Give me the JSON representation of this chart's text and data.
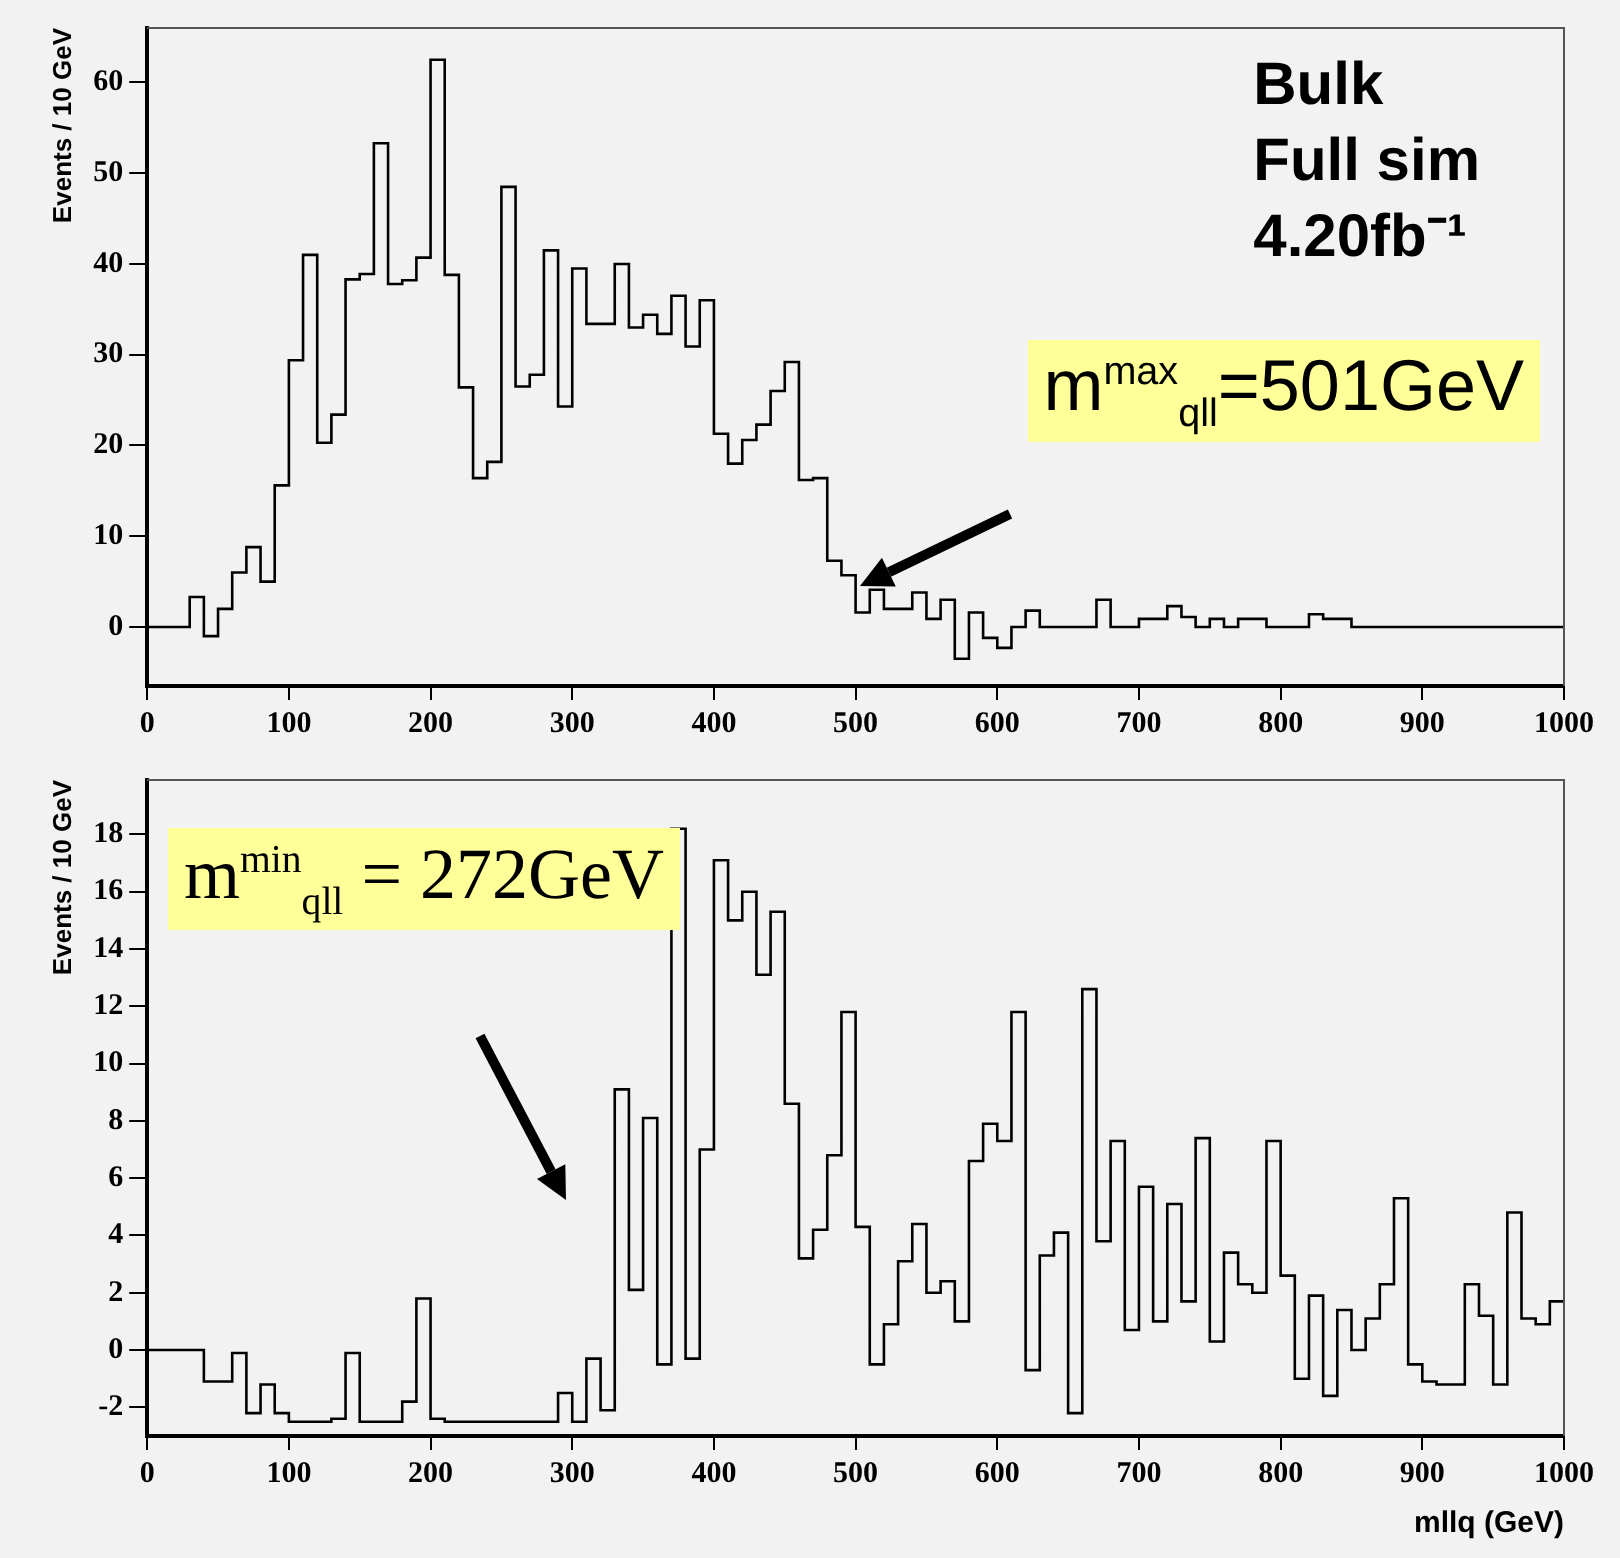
{
  "chart_data": [
    {
      "type": "histogram",
      "ylabel": "Events / 10 GeV",
      "color": "#000000",
      "bins": [
        0,
        10,
        20,
        30,
        40,
        50,
        60,
        70,
        80,
        90,
        100,
        110,
        120,
        130,
        140,
        150,
        160,
        170,
        180,
        190,
        200,
        210,
        220,
        230,
        240,
        250,
        260,
        270,
        280,
        290,
        300,
        310,
        320,
        330,
        340,
        350,
        360,
        370,
        380,
        390,
        400,
        410,
        420,
        430,
        440,
        450,
        460,
        470,
        480,
        490,
        500,
        510,
        520,
        530,
        540,
        550,
        560,
        570,
        580,
        590,
        600,
        610,
        620,
        630,
        640,
        650,
        660,
        670,
        680,
        690,
        700,
        710,
        720,
        730,
        740,
        750,
        760,
        770,
        780,
        790,
        800,
        810,
        820,
        830,
        840,
        850,
        860,
        870,
        880,
        890,
        900,
        910,
        920,
        930,
        940,
        950,
        960,
        970,
        980,
        990,
        1000
      ],
      "values": [
        0,
        0,
        0,
        3.3,
        -1,
        2,
        6,
        8.8,
        5,
        15.6,
        29.4,
        41,
        20.3,
        23.4,
        38.3,
        38.9,
        53.3,
        37.8,
        38.2,
        40.7,
        62.5,
        38.8,
        26.4,
        16.4,
        18.2,
        48.5,
        26.5,
        27.8,
        41.5,
        24.3,
        39.5,
        33.4,
        33.4,
        40,
        33,
        34.4,
        32.3,
        36.5,
        30.9,
        36,
        21.3,
        18,
        20.6,
        22.3,
        26,
        29.2,
        16.2,
        16.4,
        7.3,
        5.7,
        1.6,
        4.1,
        2,
        2,
        3.8,
        0.9,
        3,
        -3.5,
        1.6,
        -1.2,
        -2.3,
        0,
        1.8,
        0,
        0,
        0,
        0,
        3,
        0,
        0,
        0.9,
        0.9,
        2.3,
        1.1,
        0,
        0.9,
        0,
        0.9,
        0.9,
        0,
        0,
        0,
        1.4,
        0.9,
        0.9,
        0,
        0,
        0,
        0,
        0,
        0,
        0,
        0,
        0,
        0,
        0,
        0,
        0,
        0,
        0
      ],
      "xlim": [
        0,
        1000
      ],
      "xticks": [
        0,
        100,
        200,
        300,
        400,
        500,
        600,
        700,
        800,
        900,
        1000
      ],
      "ylim": [
        -6.5,
        66
      ],
      "yticks": [
        0,
        10,
        20,
        30,
        40,
        50,
        60
      ],
      "annotations": [
        "Bulk",
        "Full sim",
        "4.20fb⁻¹",
        "m$^{max}$$_{qll}$=501GeV"
      ]
    },
    {
      "type": "histogram",
      "ylabel": "Events / 10 GeV",
      "xlabel": "mllq (GeV)",
      "color": "#000000",
      "bins": [
        0,
        10,
        20,
        30,
        40,
        50,
        60,
        70,
        80,
        90,
        100,
        110,
        120,
        130,
        140,
        150,
        160,
        170,
        180,
        190,
        200,
        210,
        220,
        230,
        240,
        250,
        260,
        270,
        280,
        290,
        300,
        310,
        320,
        330,
        340,
        350,
        360,
        370,
        380,
        390,
        400,
        410,
        420,
        430,
        440,
        450,
        460,
        470,
        480,
        490,
        500,
        510,
        520,
        530,
        540,
        550,
        560,
        570,
        580,
        590,
        600,
        610,
        620,
        630,
        640,
        650,
        660,
        670,
        680,
        690,
        700,
        710,
        720,
        730,
        740,
        750,
        760,
        770,
        780,
        790,
        800,
        810,
        820,
        830,
        840,
        850,
        860,
        870,
        880,
        890,
        900,
        910,
        920,
        930,
        940,
        950,
        960,
        970,
        980,
        990,
        1000
      ],
      "values": [
        0,
        0,
        0,
        0,
        -1.1,
        -1.1,
        -0.1,
        -2.2,
        -1.2,
        -2.2,
        -2.5,
        -2.5,
        -2.5,
        -2.4,
        -0.1,
        -2.5,
        -2.5,
        -2.5,
        -1.8,
        1.8,
        -2.4,
        -2.5,
        -2.5,
        -2.5,
        -2.5,
        -2.5,
        -2.5,
        -2.5,
        -2.5,
        -1.5,
        -2.5,
        -0.3,
        -2.1,
        9.1,
        2.1,
        8.1,
        -0.5,
        18.2,
        -0.3,
        7,
        17.1,
        15,
        16,
        13.1,
        15.3,
        8.6,
        3.2,
        4.2,
        6.8,
        11.8,
        4.3,
        -0.5,
        0.9,
        3.1,
        4.4,
        2,
        2.4,
        1,
        6.6,
        7.9,
        7.3,
        11.8,
        -0.7,
        3.3,
        4.1,
        -2.2,
        12.6,
        3.8,
        7.3,
        0.7,
        5.7,
        1,
        5.1,
        1.7,
        7.4,
        0.3,
        3.4,
        2.3,
        2,
        7.3,
        2.6,
        -1,
        1.9,
        -1.6,
        1.4,
        0,
        1.1,
        2.3,
        5.3,
        -0.5,
        -1.1,
        -1.2,
        -1.2,
        2.3,
        1.2,
        -1.2,
        4.8,
        1.1,
        0.9,
        1.7
      ],
      "xlim": [
        0,
        1000
      ],
      "xticks": [
        0,
        100,
        200,
        300,
        400,
        500,
        600,
        700,
        800,
        900,
        1000
      ],
      "ylim": [
        -3,
        19.9
      ],
      "yticks": [
        -2,
        0,
        2,
        4,
        6,
        8,
        10,
        12,
        14,
        16,
        18
      ],
      "annotations": [
        "m$^{min}$$_{qll}$ = 272GeV"
      ]
    }
  ]
}
